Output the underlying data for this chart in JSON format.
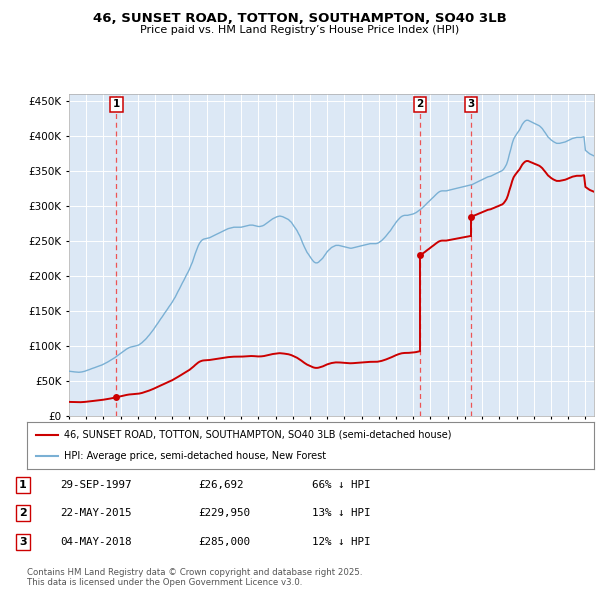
{
  "title_line1": "46, SUNSET ROAD, TOTTON, SOUTHAMPTON, SO40 3LB",
  "title_line2": "Price paid vs. HM Land Registry’s House Price Index (HPI)",
  "background_color": "#ffffff",
  "plot_bg_color": "#dce8f5",
  "grid_color": "#ffffff",
  "hpi_color": "#7ab0d4",
  "price_color": "#cc0000",
  "sale_marker_color": "#cc0000",
  "vline_color": "#ee4444",
  "sale1_date": 1997.75,
  "sale1_price": 26692,
  "sale2_date": 2015.4,
  "sale2_price": 229950,
  "sale3_date": 2018.34,
  "sale3_price": 285000,
  "xmin": 1995.0,
  "xmax": 2025.5,
  "ymin": 0,
  "ymax": 460000,
  "legend_entry1": "46, SUNSET ROAD, TOTTON, SOUTHAMPTON, SO40 3LB (semi-detached house)",
  "legend_entry2": "HPI: Average price, semi-detached house, New Forest",
  "table_row1": [
    "1",
    "29-SEP-1997",
    "£26,692",
    "66% ↓ HPI"
  ],
  "table_row2": [
    "2",
    "22-MAY-2015",
    "£229,950",
    "13% ↓ HPI"
  ],
  "table_row3": [
    "3",
    "04-MAY-2018",
    "£285,000",
    "12% ↓ HPI"
  ],
  "footnote": "Contains HM Land Registry data © Crown copyright and database right 2025.\nThis data is licensed under the Open Government Licence v3.0.",
  "hpi_data": [
    [
      1995.0,
      64000
    ],
    [
      1995.08,
      63800
    ],
    [
      1995.17,
      63500
    ],
    [
      1995.25,
      63200
    ],
    [
      1995.33,
      63000
    ],
    [
      1995.42,
      62800
    ],
    [
      1995.5,
      62600
    ],
    [
      1995.58,
      62500
    ],
    [
      1995.67,
      62700
    ],
    [
      1995.75,
      63000
    ],
    [
      1995.83,
      63500
    ],
    [
      1995.92,
      64000
    ],
    [
      1996.0,
      64800
    ],
    [
      1996.08,
      65500
    ],
    [
      1996.17,
      66200
    ],
    [
      1996.25,
      67000
    ],
    [
      1996.33,
      67800
    ],
    [
      1996.42,
      68500
    ],
    [
      1996.5,
      69200
    ],
    [
      1996.58,
      70000
    ],
    [
      1996.67,
      70800
    ],
    [
      1996.75,
      71500
    ],
    [
      1996.83,
      72200
    ],
    [
      1996.92,
      73000
    ],
    [
      1997.0,
      74000
    ],
    [
      1997.08,
      75000
    ],
    [
      1997.17,
      76000
    ],
    [
      1997.25,
      77200
    ],
    [
      1997.33,
      78400
    ],
    [
      1997.42,
      79600
    ],
    [
      1997.5,
      80800
    ],
    [
      1997.58,
      82000
    ],
    [
      1997.67,
      83500
    ],
    [
      1997.75,
      85000
    ],
    [
      1997.83,
      86500
    ],
    [
      1997.92,
      88000
    ],
    [
      1998.0,
      89500
    ],
    [
      1998.08,
      91000
    ],
    [
      1998.17,
      92500
    ],
    [
      1998.25,
      94000
    ],
    [
      1998.33,
      95500
    ],
    [
      1998.42,
      96800
    ],
    [
      1998.5,
      97800
    ],
    [
      1998.58,
      98500
    ],
    [
      1998.67,
      99000
    ],
    [
      1998.75,
      99500
    ],
    [
      1998.83,
      100000
    ],
    [
      1998.92,
      100500
    ],
    [
      1999.0,
      101000
    ],
    [
      1999.08,
      102000
    ],
    [
      1999.17,
      103500
    ],
    [
      1999.25,
      105000
    ],
    [
      1999.33,
      107000
    ],
    [
      1999.42,
      109000
    ],
    [
      1999.5,
      111000
    ],
    [
      1999.58,
      113500
    ],
    [
      1999.67,
      116000
    ],
    [
      1999.75,
      118500
    ],
    [
      1999.83,
      121000
    ],
    [
      1999.92,
      124000
    ],
    [
      2000.0,
      127000
    ],
    [
      2000.08,
      130000
    ],
    [
      2000.17,
      133000
    ],
    [
      2000.25,
      136000
    ],
    [
      2000.33,
      139000
    ],
    [
      2000.42,
      142000
    ],
    [
      2000.5,
      145000
    ],
    [
      2000.58,
      148000
    ],
    [
      2000.67,
      151000
    ],
    [
      2000.75,
      154000
    ],
    [
      2000.83,
      157000
    ],
    [
      2000.92,
      160000
    ],
    [
      2001.0,
      163000
    ],
    [
      2001.08,
      166500
    ],
    [
      2001.17,
      170000
    ],
    [
      2001.25,
      174000
    ],
    [
      2001.33,
      178000
    ],
    [
      2001.42,
      182000
    ],
    [
      2001.5,
      186000
    ],
    [
      2001.58,
      190000
    ],
    [
      2001.67,
      194000
    ],
    [
      2001.75,
      198000
    ],
    [
      2001.83,
      202000
    ],
    [
      2001.92,
      206000
    ],
    [
      2002.0,
      210000
    ],
    [
      2002.08,
      215000
    ],
    [
      2002.17,
      220000
    ],
    [
      2002.25,
      226000
    ],
    [
      2002.33,
      232000
    ],
    [
      2002.42,
      238000
    ],
    [
      2002.5,
      243000
    ],
    [
      2002.58,
      247000
    ],
    [
      2002.67,
      250000
    ],
    [
      2002.75,
      252000
    ],
    [
      2002.83,
      253000
    ],
    [
      2002.92,
      253500
    ],
    [
      2003.0,
      254000
    ],
    [
      2003.08,
      254500
    ],
    [
      2003.17,
      255000
    ],
    [
      2003.25,
      256000
    ],
    [
      2003.33,
      257000
    ],
    [
      2003.42,
      258000
    ],
    [
      2003.5,
      259000
    ],
    [
      2003.58,
      260000
    ],
    [
      2003.67,
      261000
    ],
    [
      2003.75,
      262000
    ],
    [
      2003.83,
      263000
    ],
    [
      2003.92,
      264000
    ],
    [
      2004.0,
      265000
    ],
    [
      2004.08,
      266000
    ],
    [
      2004.17,
      267000
    ],
    [
      2004.25,
      268000
    ],
    [
      2004.33,
      268500
    ],
    [
      2004.42,
      269000
    ],
    [
      2004.5,
      269500
    ],
    [
      2004.58,
      270000
    ],
    [
      2004.67,
      270000
    ],
    [
      2004.75,
      270000
    ],
    [
      2004.83,
      270000
    ],
    [
      2004.92,
      270000
    ],
    [
      2005.0,
      270000
    ],
    [
      2005.08,
      270500
    ],
    [
      2005.17,
      271000
    ],
    [
      2005.25,
      271500
    ],
    [
      2005.33,
      272000
    ],
    [
      2005.42,
      272500
    ],
    [
      2005.5,
      273000
    ],
    [
      2005.58,
      273000
    ],
    [
      2005.67,
      273000
    ],
    [
      2005.75,
      272500
    ],
    [
      2005.83,
      272000
    ],
    [
      2005.92,
      271500
    ],
    [
      2006.0,
      271000
    ],
    [
      2006.08,
      271000
    ],
    [
      2006.17,
      271500
    ],
    [
      2006.25,
      272000
    ],
    [
      2006.33,
      273000
    ],
    [
      2006.42,
      274500
    ],
    [
      2006.5,
      276000
    ],
    [
      2006.58,
      277500
    ],
    [
      2006.67,
      279000
    ],
    [
      2006.75,
      280500
    ],
    [
      2006.83,
      282000
    ],
    [
      2006.92,
      283000
    ],
    [
      2007.0,
      284000
    ],
    [
      2007.08,
      285000
    ],
    [
      2007.17,
      285500
    ],
    [
      2007.25,
      286000
    ],
    [
      2007.33,
      285500
    ],
    [
      2007.42,
      285000
    ],
    [
      2007.5,
      284000
    ],
    [
      2007.58,
      283000
    ],
    [
      2007.67,
      282000
    ],
    [
      2007.75,
      281000
    ],
    [
      2007.83,
      279000
    ],
    [
      2007.92,
      277000
    ],
    [
      2008.0,
      274000
    ],
    [
      2008.08,
      271000
    ],
    [
      2008.17,
      268000
    ],
    [
      2008.25,
      265000
    ],
    [
      2008.33,
      261000
    ],
    [
      2008.42,
      257000
    ],
    [
      2008.5,
      252000
    ],
    [
      2008.58,
      247000
    ],
    [
      2008.67,
      242000
    ],
    [
      2008.75,
      238000
    ],
    [
      2008.83,
      234000
    ],
    [
      2008.92,
      231000
    ],
    [
      2009.0,
      228000
    ],
    [
      2009.08,
      225000
    ],
    [
      2009.17,
      222000
    ],
    [
      2009.25,
      220000
    ],
    [
      2009.33,
      219000
    ],
    [
      2009.42,
      219000
    ],
    [
      2009.5,
      220000
    ],
    [
      2009.58,
      222000
    ],
    [
      2009.67,
      224000
    ],
    [
      2009.75,
      226000
    ],
    [
      2009.83,
      229000
    ],
    [
      2009.92,
      232000
    ],
    [
      2010.0,
      235000
    ],
    [
      2010.08,
      237000
    ],
    [
      2010.17,
      239000
    ],
    [
      2010.25,
      241000
    ],
    [
      2010.33,
      242000
    ],
    [
      2010.42,
      243000
    ],
    [
      2010.5,
      244000
    ],
    [
      2010.58,
      244000
    ],
    [
      2010.67,
      244000
    ],
    [
      2010.75,
      243500
    ],
    [
      2010.83,
      243000
    ],
    [
      2010.92,
      242500
    ],
    [
      2011.0,
      242000
    ],
    [
      2011.08,
      241500
    ],
    [
      2011.17,
      241000
    ],
    [
      2011.25,
      240500
    ],
    [
      2011.33,
      240000
    ],
    [
      2011.42,
      240000
    ],
    [
      2011.5,
      240500
    ],
    [
      2011.58,
      241000
    ],
    [
      2011.67,
      241500
    ],
    [
      2011.75,
      242000
    ],
    [
      2011.83,
      242500
    ],
    [
      2011.92,
      243000
    ],
    [
      2012.0,
      243500
    ],
    [
      2012.08,
      244000
    ],
    [
      2012.17,
      244500
    ],
    [
      2012.25,
      245000
    ],
    [
      2012.33,
      245500
    ],
    [
      2012.42,
      246000
    ],
    [
      2012.5,
      246500
    ],
    [
      2012.58,
      246500
    ],
    [
      2012.67,
      246500
    ],
    [
      2012.75,
      246500
    ],
    [
      2012.83,
      246500
    ],
    [
      2012.92,
      247000
    ],
    [
      2013.0,
      248000
    ],
    [
      2013.08,
      249500
    ],
    [
      2013.17,
      251000
    ],
    [
      2013.25,
      253000
    ],
    [
      2013.33,
      255000
    ],
    [
      2013.42,
      257500
    ],
    [
      2013.5,
      260000
    ],
    [
      2013.58,
      262500
    ],
    [
      2013.67,
      265000
    ],
    [
      2013.75,
      268000
    ],
    [
      2013.83,
      271000
    ],
    [
      2013.92,
      274000
    ],
    [
      2014.0,
      277000
    ],
    [
      2014.08,
      279500
    ],
    [
      2014.17,
      282000
    ],
    [
      2014.25,
      284000
    ],
    [
      2014.33,
      285500
    ],
    [
      2014.42,
      286500
    ],
    [
      2014.5,
      287000
    ],
    [
      2014.58,
      287000
    ],
    [
      2014.67,
      287000
    ],
    [
      2014.75,
      287500
    ],
    [
      2014.83,
      288000
    ],
    [
      2014.92,
      288500
    ],
    [
      2015.0,
      289000
    ],
    [
      2015.08,
      290000
    ],
    [
      2015.17,
      291000
    ],
    [
      2015.25,
      292500
    ],
    [
      2015.33,
      294000
    ],
    [
      2015.42,
      295500
    ],
    [
      2015.5,
      297000
    ],
    [
      2015.58,
      299000
    ],
    [
      2015.67,
      301000
    ],
    [
      2015.75,
      303000
    ],
    [
      2015.83,
      305000
    ],
    [
      2015.92,
      307000
    ],
    [
      2016.0,
      309000
    ],
    [
      2016.08,
      311000
    ],
    [
      2016.17,
      313000
    ],
    [
      2016.25,
      315000
    ],
    [
      2016.33,
      317000
    ],
    [
      2016.42,
      319000
    ],
    [
      2016.5,
      320500
    ],
    [
      2016.58,
      321500
    ],
    [
      2016.67,
      322000
    ],
    [
      2016.75,
      322000
    ],
    [
      2016.83,
      322000
    ],
    [
      2016.92,
      322000
    ],
    [
      2017.0,
      322500
    ],
    [
      2017.08,
      323000
    ],
    [
      2017.17,
      323500
    ],
    [
      2017.25,
      324000
    ],
    [
      2017.33,
      324500
    ],
    [
      2017.42,
      325000
    ],
    [
      2017.5,
      325500
    ],
    [
      2017.58,
      326000
    ],
    [
      2017.67,
      326500
    ],
    [
      2017.75,
      327000
    ],
    [
      2017.83,
      327500
    ],
    [
      2017.92,
      328000
    ],
    [
      2018.0,
      328500
    ],
    [
      2018.08,
      329000
    ],
    [
      2018.17,
      329500
    ],
    [
      2018.25,
      330000
    ],
    [
      2018.33,
      330500
    ],
    [
      2018.42,
      331000
    ],
    [
      2018.5,
      332000
    ],
    [
      2018.58,
      333000
    ],
    [
      2018.67,
      334000
    ],
    [
      2018.75,
      335000
    ],
    [
      2018.83,
      336000
    ],
    [
      2018.92,
      337000
    ],
    [
      2019.0,
      338000
    ],
    [
      2019.08,
      339000
    ],
    [
      2019.17,
      340000
    ],
    [
      2019.25,
      341000
    ],
    [
      2019.33,
      342000
    ],
    [
      2019.42,
      342500
    ],
    [
      2019.5,
      343000
    ],
    [
      2019.58,
      344000
    ],
    [
      2019.67,
      345000
    ],
    [
      2019.75,
      346000
    ],
    [
      2019.83,
      347000
    ],
    [
      2019.92,
      348000
    ],
    [
      2020.0,
      349000
    ],
    [
      2020.08,
      350000
    ],
    [
      2020.17,
      351000
    ],
    [
      2020.25,
      353000
    ],
    [
      2020.33,
      356000
    ],
    [
      2020.42,
      360000
    ],
    [
      2020.5,
      366000
    ],
    [
      2020.58,
      374000
    ],
    [
      2020.67,
      382000
    ],
    [
      2020.75,
      390000
    ],
    [
      2020.83,
      396000
    ],
    [
      2020.92,
      400000
    ],
    [
      2021.0,
      403000
    ],
    [
      2021.08,
      406000
    ],
    [
      2021.17,
      409000
    ],
    [
      2021.25,
      413000
    ],
    [
      2021.33,
      417000
    ],
    [
      2021.42,
      420000
    ],
    [
      2021.5,
      422000
    ],
    [
      2021.58,
      423000
    ],
    [
      2021.67,
      423000
    ],
    [
      2021.75,
      422000
    ],
    [
      2021.83,
      421000
    ],
    [
      2021.92,
      420000
    ],
    [
      2022.0,
      419000
    ],
    [
      2022.08,
      418000
    ],
    [
      2022.17,
      417000
    ],
    [
      2022.25,
      416000
    ],
    [
      2022.33,
      415000
    ],
    [
      2022.42,
      413000
    ],
    [
      2022.5,
      411000
    ],
    [
      2022.58,
      408000
    ],
    [
      2022.67,
      405000
    ],
    [
      2022.75,
      402000
    ],
    [
      2022.83,
      399000
    ],
    [
      2022.92,
      397000
    ],
    [
      2023.0,
      395000
    ],
    [
      2023.08,
      393500
    ],
    [
      2023.17,
      392000
    ],
    [
      2023.25,
      391000
    ],
    [
      2023.33,
      390000
    ],
    [
      2023.42,
      390000
    ],
    [
      2023.5,
      390000
    ],
    [
      2023.58,
      390500
    ],
    [
      2023.67,
      391000
    ],
    [
      2023.75,
      391500
    ],
    [
      2023.83,
      392000
    ],
    [
      2023.92,
      393000
    ],
    [
      2024.0,
      394000
    ],
    [
      2024.08,
      395000
    ],
    [
      2024.17,
      396000
    ],
    [
      2024.25,
      397000
    ],
    [
      2024.33,
      397500
    ],
    [
      2024.42,
      398000
    ],
    [
      2024.5,
      398500
    ],
    [
      2024.58,
      398500
    ],
    [
      2024.67,
      398500
    ],
    [
      2024.75,
      398500
    ],
    [
      2024.83,
      399000
    ],
    [
      2024.92,
      399500
    ],
    [
      2025.0,
      380000
    ],
    [
      2025.25,
      375000
    ],
    [
      2025.5,
      372000
    ]
  ]
}
